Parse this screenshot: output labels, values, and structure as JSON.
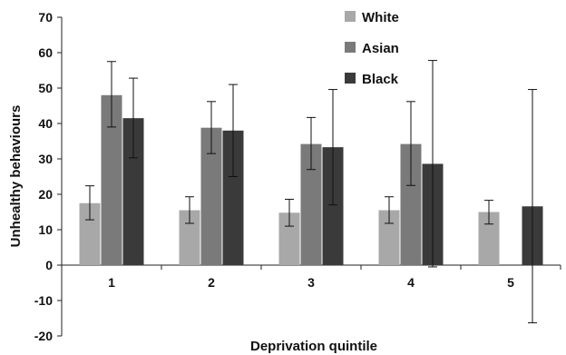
{
  "chart_data": {
    "type": "bar",
    "title": "",
    "xlabel": "Deprivation quintile",
    "ylabel": "Unhealthy behaviours",
    "ylim": [
      -20,
      70
    ],
    "yticks": [
      "-20",
      "-10",
      "0",
      "10",
      "20",
      "30",
      "40",
      "50",
      "60",
      "70"
    ],
    "categories": [
      "1",
      "2",
      "3",
      "4",
      "5"
    ],
    "legend_position": "top-right",
    "grid": false,
    "series": [
      {
        "name": "White",
        "color": "#a8a8a8",
        "values": [
          17.5,
          15.5,
          14.8,
          15.5,
          15.0
        ],
        "err_low": [
          12.8,
          11.8,
          11.0,
          11.8,
          11.6
        ],
        "err_high": [
          22.4,
          19.3,
          18.6,
          19.3,
          18.3
        ]
      },
      {
        "name": "Asian",
        "color": "#7a7a7a",
        "values": [
          48.0,
          38.8,
          34.2,
          34.2,
          null
        ],
        "err_low": [
          39.0,
          31.5,
          27.0,
          22.5,
          null
        ],
        "err_high": [
          57.5,
          46.2,
          41.7,
          46.2,
          null
        ]
      },
      {
        "name": "Black",
        "color": "#3a3a3a",
        "values": [
          41.5,
          38.0,
          33.3,
          28.6,
          16.6
        ],
        "err_low": [
          30.3,
          25.0,
          17.0,
          -0.5,
          -16.3
        ],
        "err_high": [
          52.8,
          51.0,
          49.6,
          57.8,
          49.6
        ]
      }
    ]
  }
}
